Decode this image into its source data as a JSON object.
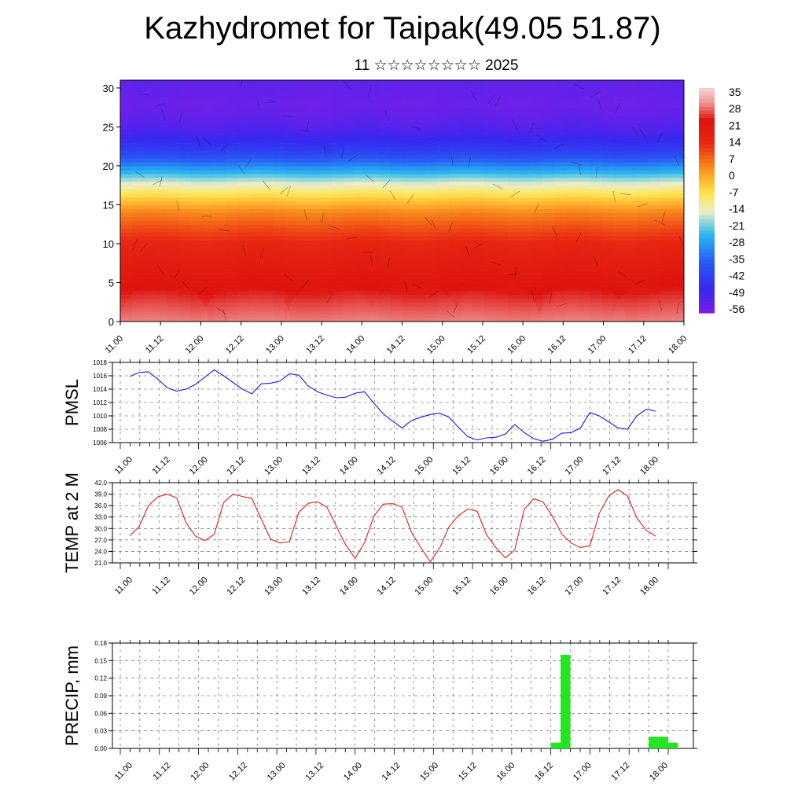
{
  "title": "Kazhydromet for Taipak(49.05 51.87)",
  "subtitle": "11 ☆☆☆☆☆☆☆☆ 2025",
  "time_labels": [
    "11.00",
    "11.12",
    "12.00",
    "12.12",
    "13.00",
    "13.12",
    "14.00",
    "14.12",
    "15.00",
    "15.12",
    "16.00",
    "16.12",
    "17.00",
    "17.12",
    "18.00"
  ],
  "chart_data": [
    {
      "type": "heatmap",
      "title": "",
      "xlabel": "",
      "ylabel": "",
      "ylim": [
        0,
        31
      ],
      "yticks": [
        0,
        5,
        10,
        15,
        20,
        25,
        30
      ],
      "colorbar_labels": [
        "35",
        "28",
        "21",
        "14",
        "7",
        "0",
        "-7",
        "-14",
        "-21",
        "-28",
        "-35",
        "-42",
        "-49",
        "-56"
      ],
      "colorbar_range": [
        -60,
        38
      ],
      "description_values": {
        "z": [
          0,
          2,
          4,
          6,
          8,
          10,
          12,
          14,
          16,
          18,
          20,
          22,
          24,
          26,
          28,
          31
        ],
        "temperature": [
          30,
          27,
          24,
          21,
          18,
          15,
          10,
          4,
          -6,
          -18,
          -32,
          -45,
          -52,
          -56,
          -58,
          -56
        ]
      },
      "colors": {
        "warm_max": "#f5c0c0",
        "red": "#e11a12",
        "yellow": "#ffe24a",
        "cyan": "#29b8f0",
        "blue": "#2a3af0",
        "violet": "#7a1ee8"
      }
    },
    {
      "type": "line",
      "ylabel": "PMSL",
      "ylim": [
        1006,
        1018
      ],
      "yticks": [
        1006,
        1008,
        1010,
        1012,
        1014,
        1016,
        1018
      ],
      "color": "#1a1ae6",
      "series": [
        {
          "values": [
            1015.9,
            1016.5,
            1016.6,
            1015.5,
            1014.2,
            1013.7,
            1014.0,
            1014.7,
            1015.8,
            1016.9,
            1016.0,
            1015.0,
            1014.0,
            1013.3,
            1014.8,
            1014.9,
            1015.2,
            1016.3,
            1016.1,
            1014.5,
            1013.6,
            1013.1,
            1012.7,
            1012.8,
            1013.4,
            1013.6,
            1011.9,
            1010.3,
            1009.2,
            1008.2,
            1009.3,
            1009.8,
            1010.2,
            1010.4,
            1009.8,
            1008.3,
            1006.9,
            1006.4,
            1006.7,
            1006.8,
            1007.3,
            1008.7,
            1007.5,
            1006.6,
            1006.2,
            1006.5,
            1007.4,
            1007.5,
            1008.2,
            1010.5,
            1010.0,
            1009.1,
            1008.2,
            1008.0,
            1010.0,
            1011.0,
            1010.7
          ]
        }
      ]
    },
    {
      "type": "line",
      "ylabel": "TEMP at 2 M",
      "ylim": [
        21.0,
        42.0
      ],
      "yticks": [
        "21.0",
        "24.0",
        "27.0",
        "30.0",
        "33.0",
        "36.0",
        "39.0",
        "42.0"
      ],
      "color": "#e0201c",
      "series": [
        {
          "values": [
            28.1,
            30.5,
            36.0,
            38.3,
            39.0,
            38.0,
            31.5,
            28.0,
            26.8,
            28.5,
            36.8,
            39.0,
            38.4,
            37.9,
            32.5,
            27.2,
            26.2,
            26.5,
            34.2,
            36.6,
            37.0,
            35.6,
            30.6,
            25.7,
            22.2,
            26.3,
            33.2,
            36.4,
            36.5,
            35.6,
            29.0,
            25.0,
            21.3,
            24.8,
            30.5,
            33.4,
            35.1,
            34.5,
            28.3,
            25.0,
            22.3,
            24.4,
            35.0,
            37.8,
            37.0,
            33.2,
            28.6,
            26.2,
            25.0,
            25.5,
            34.0,
            38.5,
            40.2,
            38.5,
            32.8,
            29.5,
            28.0
          ]
        }
      ]
    },
    {
      "type": "bar",
      "ylabel": "PRECIP, mm",
      "ylim": [
        0,
        0.18
      ],
      "yticks": [
        "0.00",
        "0.03",
        "0.06",
        "0.09",
        "0.12",
        "0.15",
        "0.18"
      ],
      "color": "#22e622",
      "bars": [
        {
          "t": 44,
          "value": 0.01
        },
        {
          "t": 45,
          "value": 0.16
        },
        {
          "t": 54,
          "value": 0.02
        },
        {
          "t": 55,
          "value": 0.02
        },
        {
          "t": 56,
          "value": 0.01
        }
      ]
    }
  ]
}
